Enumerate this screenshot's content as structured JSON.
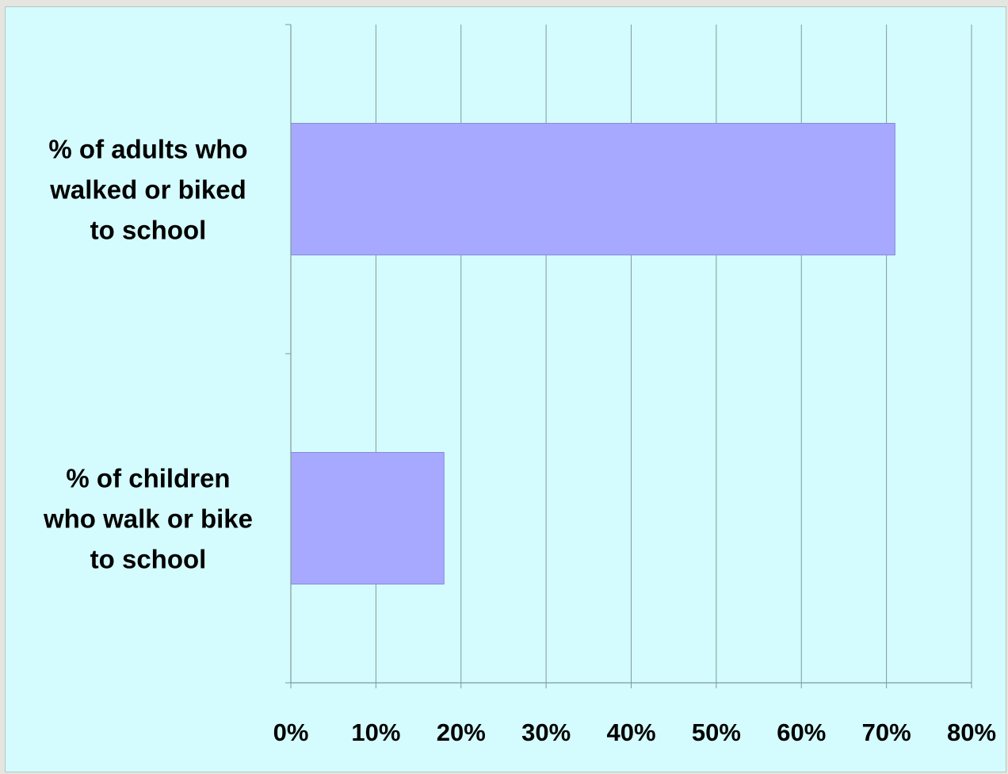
{
  "chart_data": {
    "type": "bar",
    "orientation": "horizontal",
    "categories": [
      "% of adults who walked or biked to school",
      "% of children who walk or bike to school"
    ],
    "category_lines": [
      [
        "% of adults who",
        "walked or biked",
        "to school"
      ],
      [
        "% of children",
        "who walk or bike",
        "to school"
      ]
    ],
    "values": [
      71,
      18
    ],
    "xlim": [
      0,
      80
    ],
    "xticks": [
      0,
      10,
      20,
      30,
      40,
      50,
      60,
      70,
      80
    ],
    "xtick_labels": [
      "0%",
      "10%",
      "20%",
      "30%",
      "40%",
      "50%",
      "60%",
      "70%",
      "80%"
    ],
    "title": "",
    "xlabel": "",
    "ylabel": "",
    "grid": "vertical",
    "legend": "none"
  },
  "colors": {
    "background": "#d4fbfd",
    "bar_fill": "#a6a9ff",
    "bar_stroke": "#8a8ad8",
    "gridline": "#7f9b9b",
    "axis": "#7f9b9b"
  }
}
